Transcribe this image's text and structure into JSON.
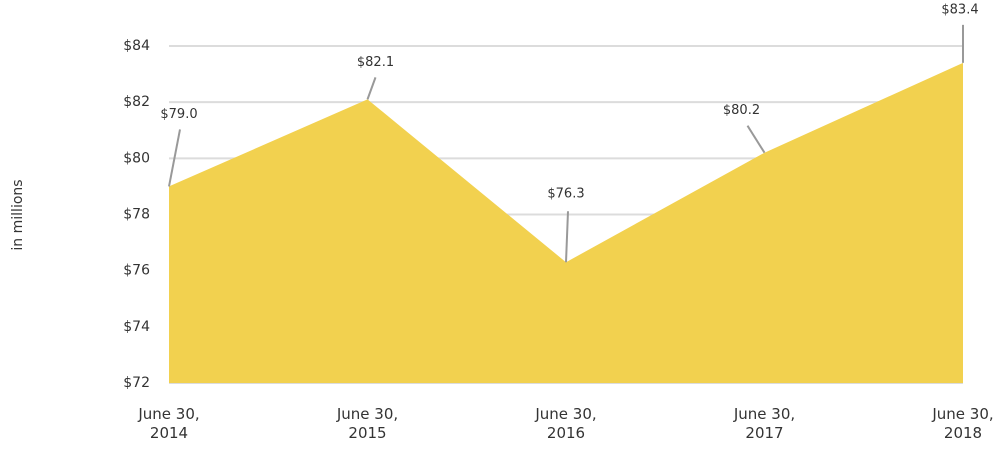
{
  "chart_data": {
    "type": "area",
    "y_label": "in millions",
    "categories": [
      "June 30, 2014",
      "June 30, 2015",
      "June 30, 2016",
      "June 30, 2017",
      "June 30, 2018"
    ],
    "values": [
      79.0,
      82.1,
      76.3,
      80.2,
      83.4
    ],
    "value_labels": [
      "$79.0",
      "$82.1",
      "$76.3",
      "$80.2",
      "$83.4"
    ],
    "color": "#f2d14f",
    "ylim": [
      72,
      84
    ],
    "yticks": [
      {
        "value": 72,
        "label": "$72"
      },
      {
        "value": 74,
        "label": "$74"
      },
      {
        "value": 76,
        "label": "$76"
      },
      {
        "value": 78,
        "label": "$78"
      },
      {
        "value": 80,
        "label": "$80"
      },
      {
        "value": 82,
        "label": "$82"
      },
      {
        "value": 84,
        "label": "$84"
      }
    ],
    "grid": true
  }
}
